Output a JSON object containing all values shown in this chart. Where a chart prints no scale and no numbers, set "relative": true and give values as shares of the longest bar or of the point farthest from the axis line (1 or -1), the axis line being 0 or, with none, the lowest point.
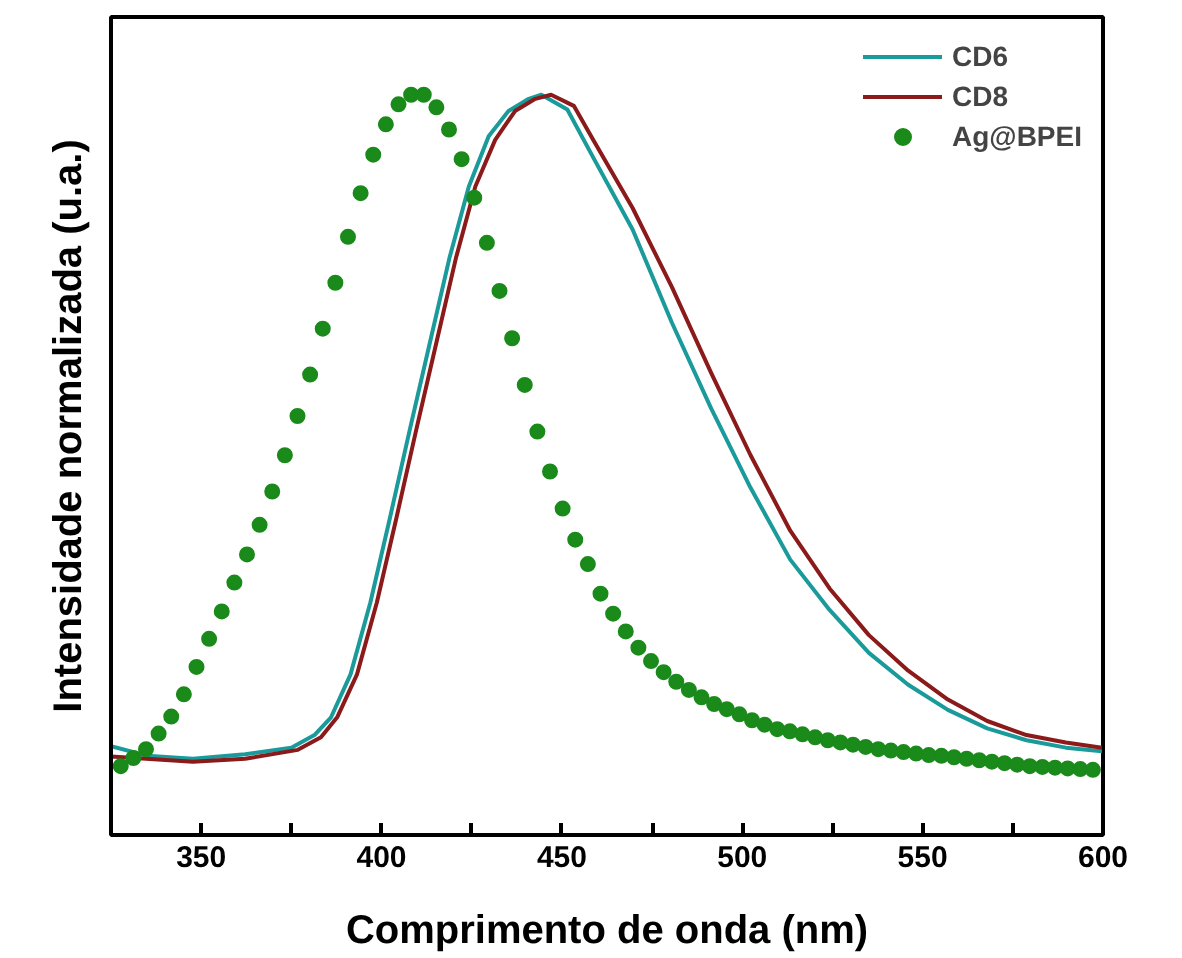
{
  "chart_data": {
    "type": "line",
    "xlabel": "Comprimento de onda (nm)",
    "ylabel": "Intensidade normalizada (u.a.)",
    "relative": true,
    "xlim": [
      325,
      600
    ],
    "xticks": [
      {
        "value": 325,
        "label": null
      },
      350,
      {
        "value": 375,
        "label": null
      },
      400,
      {
        "value": 425,
        "label": null
      },
      450,
      {
        "value": 475,
        "label": null
      },
      500,
      {
        "value": 525,
        "label": null
      },
      550,
      {
        "value": 575,
        "label": null
      },
      600
    ],
    "legend": "top right",
    "grid": false,
    "series": [
      {
        "name": "CD6",
        "type": "line",
        "color": "#1a9a9a",
        "line_style": "solid",
        "x": [
          325,
          335,
          347.7,
          362.2,
          375,
          381.4,
          386,
          391.4,
          396.9,
          402.4,
          407.8,
          413.3,
          418.8,
          424.2,
          429.7,
          435.2,
          440.6,
          444.3,
          451.5,
          458.7,
          469.6,
          480.5,
          491.4,
          502.3,
          513.3,
          524.2,
          535.1,
          546,
          557,
          567.9,
          578.8,
          589.7,
          599.7
        ],
        "values": [
          0.12,
          0.107,
          0.103,
          0.109,
          0.118,
          0.135,
          0.159,
          0.217,
          0.314,
          0.43,
          0.547,
          0.663,
          0.779,
          0.876,
          0.944,
          0.978,
          0.994,
          1.0,
          0.98,
          0.915,
          0.818,
          0.692,
          0.576,
          0.469,
          0.372,
          0.304,
          0.246,
          0.203,
          0.169,
          0.144,
          0.128,
          0.118,
          0.113
        ]
      },
      {
        "name": "CD8",
        "type": "line",
        "color": "#8b1a1a",
        "line_style": "solid",
        "x": [
          325,
          347.7,
          362.2,
          376.8,
          383.2,
          387.7,
          393.2,
          398.7,
          404.2,
          409.6,
          415.1,
          420.6,
          426,
          431.5,
          437,
          442.4,
          447,
          453.3,
          458.7,
          469.6,
          480.5,
          491.4,
          502.3,
          513.3,
          524.2,
          535.1,
          546,
          557,
          567.9,
          578.8,
          589.7,
          599.7
        ],
        "values": [
          0.106,
          0.099,
          0.103,
          0.115,
          0.132,
          0.159,
          0.217,
          0.314,
          0.43,
          0.547,
          0.663,
          0.779,
          0.876,
          0.939,
          0.978,
          0.994,
          1.0,
          0.985,
          0.939,
          0.847,
          0.74,
          0.624,
          0.513,
          0.411,
          0.333,
          0.27,
          0.222,
          0.183,
          0.154,
          0.135,
          0.125,
          0.118
        ]
      },
      {
        "name": "Ag@BPEI",
        "type": "scatter",
        "color": "#1a8a1a",
        "marker": "circle",
        "x": [
          327.7,
          331.2,
          334.7,
          338.2,
          341.7,
          345.2,
          348.7,
          352.2,
          355.7,
          359.2,
          362.7,
          366.2,
          369.7,
          373.2,
          376.7,
          380.2,
          383.7,
          387.2,
          390.7,
          394.2,
          397.7,
          401.2,
          404.7,
          408.2,
          411.7,
          415.2,
          418.7,
          422.2,
          425.7,
          429.2,
          432.7,
          436.2,
          439.7,
          443.2,
          446.7,
          450.2,
          453.7,
          457.2,
          460.7,
          464.2,
          467.7,
          471.2,
          474.7,
          478.2,
          481.7,
          485.2,
          488.7,
          492.2,
          495.7,
          499.2,
          502.7,
          506.2,
          509.7,
          513.2,
          516.7,
          520.2,
          523.7,
          527.2,
          530.7,
          534.2,
          537.7,
          541.2,
          544.7,
          548.2,
          551.7,
          555.2,
          558.7,
          562.2,
          565.7,
          569.2,
          572.7,
          576.2,
          579.7,
          583.2,
          586.7,
          590.2,
          593.7,
          597.2
        ],
        "values": [
          0.093,
          0.104,
          0.116,
          0.137,
          0.16,
          0.19,
          0.227,
          0.265,
          0.302,
          0.341,
          0.379,
          0.419,
          0.464,
          0.513,
          0.566,
          0.622,
          0.684,
          0.746,
          0.808,
          0.867,
          0.919,
          0.96,
          0.987,
          1.0,
          1.0,
          0.983,
          0.953,
          0.913,
          0.861,
          0.8,
          0.735,
          0.671,
          0.608,
          0.545,
          0.491,
          0.441,
          0.399,
          0.366,
          0.326,
          0.299,
          0.275,
          0.253,
          0.235,
          0.22,
          0.207,
          0.196,
          0.186,
          0.177,
          0.17,
          0.163,
          0.155,
          0.149,
          0.143,
          0.14,
          0.136,
          0.132,
          0.128,
          0.125,
          0.122,
          0.119,
          0.116,
          0.114,
          0.112,
          0.11,
          0.108,
          0.107,
          0.105,
          0.103,
          0.101,
          0.099,
          0.097,
          0.095,
          0.093,
          0.092,
          0.091,
          0.09,
          0.089,
          0.088
        ]
      }
    ]
  }
}
